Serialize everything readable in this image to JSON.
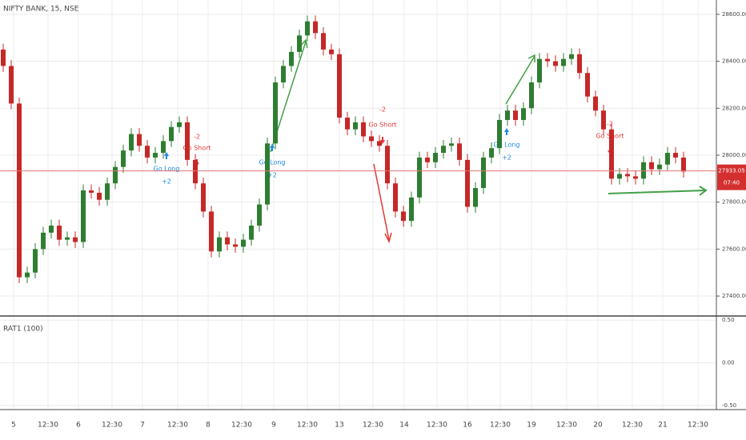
{
  "chart_data": {
    "type": "candlestick",
    "title": "NIFTY BANK, 15, NSE",
    "up_color": "#2e7d32",
    "down_color": "#c62828",
    "grid": true,
    "open": [
      28450,
      28380,
      28220,
      27480,
      27500,
      27600,
      27670,
      27700,
      27640,
      27650,
      27630,
      27850,
      27840,
      27810,
      27880,
      27950,
      28020,
      28090,
      28040,
      27990,
      28010,
      28060,
      28120,
      28140,
      27980,
      27880,
      27760,
      27590,
      27650,
      27620,
      27610,
      27640,
      27700,
      27790,
      28050,
      28310,
      28380,
      28440,
      28510,
      28570,
      28520,
      28450,
      28430,
      28160,
      28110,
      28140,
      28080,
      28060,
      28040,
      27880,
      27760,
      27720,
      27820,
      27990,
      27970,
      28010,
      28040,
      28050,
      27980,
      27780,
      27860,
      27990,
      28030,
      28150,
      28190,
      28150,
      28200,
      28310,
      28410,
      28400,
      28380,
      28410,
      28430,
      28350,
      28250,
      28190,
      28110,
      27900,
      27920,
      27910,
      27900,
      27970,
      27940,
      27960,
      28010,
      27990
    ],
    "high": [
      28475,
      28405,
      28245,
      27525,
      27625,
      27695,
      27725,
      27725,
      27675,
      27675,
      27875,
      27875,
      27865,
      27905,
      27975,
      28045,
      28115,
      28115,
      28065,
      28035,
      28085,
      28145,
      28165,
      28165,
      28005,
      27905,
      27785,
      27675,
      27675,
      27645,
      27665,
      27725,
      27815,
      28075,
      28335,
      28405,
      28465,
      28535,
      28595,
      28595,
      28545,
      28475,
      28455,
      28185,
      28165,
      28165,
      28105,
      28085,
      28065,
      27905,
      27785,
      27845,
      28015,
      28015,
      28035,
      28065,
      28075,
      28075,
      28005,
      27885,
      28015,
      28055,
      28175,
      28215,
      28215,
      28225,
      28335,
      28435,
      28435,
      28425,
      28435,
      28455,
      28455,
      28375,
      28275,
      28215,
      28135,
      27945,
      27945,
      27935,
      27995,
      27995,
      27985,
      28035,
      28035,
      28015
    ],
    "low": [
      28355,
      28195,
      27455,
      27455,
      27475,
      27575,
      27645,
      27615,
      27615,
      27605,
      27605,
      27815,
      27785,
      27785,
      27855,
      27925,
      27995,
      28015,
      27965,
      27965,
      27985,
      28035,
      28095,
      27955,
      27855,
      27735,
      27565,
      27565,
      27595,
      27585,
      27585,
      27615,
      27675,
      27765,
      28025,
      28285,
      28355,
      28415,
      28485,
      28495,
      28425,
      28405,
      28135,
      28085,
      28085,
      28055,
      28035,
      28015,
      27855,
      27735,
      27695,
      27695,
      27795,
      27945,
      27945,
      27985,
      28015,
      27955,
      27755,
      27755,
      27835,
      27965,
      28005,
      28125,
      28125,
      28125,
      28175,
      28285,
      28375,
      28355,
      28355,
      28385,
      28325,
      28225,
      28165,
      28085,
      27875,
      27875,
      27885,
      27875,
      27875,
      27915,
      27915,
      27935,
      27965,
      27905
    ],
    "close": [
      28380,
      28220,
      27480,
      27500,
      27600,
      27670,
      27700,
      27640,
      27650,
      27630,
      27850,
      27840,
      27810,
      27880,
      27950,
      28020,
      28090,
      28040,
      27990,
      28010,
      28060,
      28120,
      28140,
      27980,
      27880,
      27760,
      27590,
      27650,
      27620,
      27610,
      27640,
      27700,
      27790,
      28050,
      28310,
      28380,
      28440,
      28510,
      28570,
      28520,
      28450,
      28430,
      28160,
      28110,
      28140,
      28080,
      28060,
      28040,
      27880,
      27760,
      27720,
      27820,
      27990,
      27970,
      28010,
      28040,
      28050,
      27980,
      27780,
      27860,
      27990,
      28030,
      28150,
      28190,
      28150,
      28200,
      28310,
      28410,
      28400,
      28380,
      28410,
      28430,
      28350,
      28250,
      28190,
      28110,
      27900,
      27920,
      27910,
      27900,
      27970,
      27940,
      27960,
      28010,
      27990,
      27930
    ],
    "ylim": [
      27315,
      28661
    ],
    "yticks": [
      {
        "value": 27400,
        "label": "27400.00"
      },
      {
        "value": 27600,
        "label": "27600.00"
      },
      {
        "value": 27800,
        "label": "27800.00"
      },
      {
        "value": 28000,
        "label": "28000.00"
      },
      {
        "value": 28200,
        "label": "28200.00"
      },
      {
        "value": 28400,
        "label": "28400.00"
      },
      {
        "value": 28600,
        "label": "28600.00"
      }
    ],
    "last_price": {
      "value": 27933.05,
      "label": "27933.05",
      "countdown": "07:40"
    },
    "xticks": [
      "5",
      "12:30",
      "6",
      "12:30",
      "7",
      "12:30",
      "8",
      "12:30",
      "9",
      "12:30",
      "13",
      "12:30",
      "14",
      "12:30",
      "16",
      "12:30",
      "19",
      "12:30",
      "20",
      "12:30",
      "21",
      "12:30"
    ],
    "signals": [
      {
        "label": "Go Long",
        "size": "+2"
      },
      {
        "label": "Go Short",
        "size": "-2"
      },
      {
        "label": "Go Long",
        "size": "+2"
      },
      {
        "label": "Go Short",
        "size": "-2"
      },
      {
        "label": "Go Long",
        "size": "+2"
      },
      {
        "label": "Go Short",
        "size": "-2"
      }
    ],
    "indicator": {
      "title": "RAT1 (100)",
      "ylim": [
        -0.53,
        0.53
      ],
      "yticks": [
        {
          "value": 0.5,
          "label": "0.50"
        },
        {
          "value": 0,
          "label": "0.00"
        },
        {
          "value": -0.5,
          "label": "-0.50"
        }
      ]
    }
  }
}
